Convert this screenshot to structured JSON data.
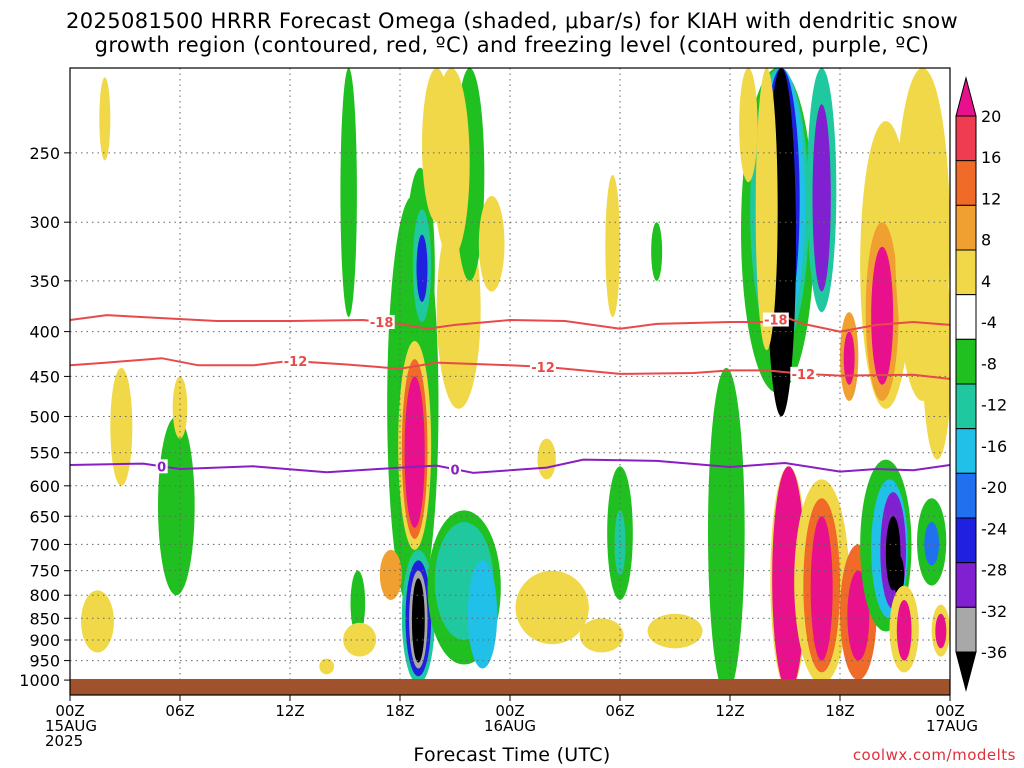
{
  "title": {
    "line1": "2025081500 HRRR Forecast Omega (shaded, μbar/s) for KIAH with dendritic snow",
    "line2": "growth region (contoured, red, ºC) and freezing level (contoured, purple, ºC)"
  },
  "xlabel": "Forecast Time (UTC)",
  "credit": "coolwx.com/modelts",
  "colors": {
    "dgz_contour": "#e84a4a",
    "freezing_contour": "#8a1ec4",
    "ground": "#a0522d"
  },
  "chart_data": {
    "type": "heatmap",
    "title": "2025081500 HRRR Forecast Omega (shaded, μbar/s) for KIAH with dendritic snow growth region (contoured, red, ºC) and freezing level (contoured, purple, ºC)",
    "xlabel": "Forecast Time (UTC)",
    "ylabel": "",
    "x_range_hours": [
      0,
      48
    ],
    "y_axis": "pressure (hPa), log scale, inverted",
    "ylim": [
      1040,
      200
    ],
    "grid": true,
    "x_ticks": [
      {
        "hour": 0,
        "lines": [
          "00Z",
          "15AUG",
          "2025"
        ]
      },
      {
        "hour": 6,
        "lines": [
          "06Z"
        ]
      },
      {
        "hour": 12,
        "lines": [
          "12Z"
        ]
      },
      {
        "hour": 18,
        "lines": [
          "18Z"
        ]
      },
      {
        "hour": 24,
        "lines": [
          "00Z",
          "16AUG"
        ]
      },
      {
        "hour": 30,
        "lines": [
          "06Z"
        ]
      },
      {
        "hour": 36,
        "lines": [
          "12Z"
        ]
      },
      {
        "hour": 42,
        "lines": [
          "18Z"
        ]
      },
      {
        "hour": 48,
        "lines": [
          "00Z",
          "17AUG"
        ]
      }
    ],
    "y_ticks": [
      250,
      300,
      350,
      400,
      450,
      500,
      550,
      600,
      650,
      700,
      750,
      800,
      850,
      900,
      950,
      1000
    ],
    "colorbar": {
      "levels": [
        "20",
        "16",
        "12",
        "8",
        "4",
        "-4",
        "-8",
        "-12",
        "-16",
        "-20",
        "-24",
        "-28",
        "-32",
        "-36"
      ],
      "bands": [
        {
          "lo": 16,
          "hi": 20,
          "color": "#f03c50"
        },
        {
          "lo": 12,
          "hi": 16,
          "color": "#f06a28"
        },
        {
          "lo": 8,
          "hi": 12,
          "color": "#f0a030"
        },
        {
          "lo": 4,
          "hi": 8,
          "color": "#f0d848"
        },
        {
          "lo": -4,
          "hi": 4,
          "color": "#ffffff"
        },
        {
          "lo": -8,
          "hi": -4,
          "color": "#20c020"
        },
        {
          "lo": -12,
          "hi": -8,
          "color": "#20c8a0"
        },
        {
          "lo": -16,
          "hi": -12,
          "color": "#20c0e8"
        },
        {
          "lo": -20,
          "hi": -16,
          "color": "#2070f0"
        },
        {
          "lo": -24,
          "hi": -20,
          "color": "#2020e0"
        },
        {
          "lo": -28,
          "hi": -24,
          "color": "#8020d0"
        },
        {
          "lo": -32,
          "hi": -28,
          "color": "#a8a8a8"
        }
      ],
      "top_extend_color": "#e8108c",
      "bottom_extend_color": "#000000"
    },
    "series": [
      {
        "name": "-18",
        "color": "#e84a4a",
        "points": [
          [
            0,
            388
          ],
          [
            2,
            383
          ],
          [
            4,
            385
          ],
          [
            8,
            389
          ],
          [
            12,
            389
          ],
          [
            16,
            388
          ],
          [
            18,
            392
          ],
          [
            19.5,
            397
          ],
          [
            21,
            393
          ],
          [
            24,
            388
          ],
          [
            27,
            389
          ],
          [
            30,
            397
          ],
          [
            32,
            392
          ],
          [
            36,
            390
          ],
          [
            38,
            390
          ],
          [
            39,
            385
          ],
          [
            40,
            392
          ],
          [
            42,
            400
          ],
          [
            44,
            393
          ],
          [
            46,
            390
          ],
          [
            48,
            393
          ]
        ],
        "labels": [
          {
            "hour": 17,
            "text": "-18"
          },
          {
            "hour": 38.5,
            "text": "-18"
          }
        ]
      },
      {
        "name": "-12",
        "color": "#e84a4a",
        "points": [
          [
            0,
            437
          ],
          [
            2,
            434
          ],
          [
            5,
            429
          ],
          [
            7,
            437
          ],
          [
            10,
            437
          ],
          [
            12,
            432
          ],
          [
            15,
            436
          ],
          [
            18,
            441
          ],
          [
            20,
            434
          ],
          [
            24,
            437
          ],
          [
            26,
            439
          ],
          [
            30,
            447
          ],
          [
            34,
            446
          ],
          [
            36,
            443
          ],
          [
            38,
            443
          ],
          [
            40,
            447
          ],
          [
            42,
            449
          ],
          [
            46,
            448
          ],
          [
            48,
            453
          ]
        ],
        "labels": [
          {
            "hour": 12.3,
            "text": "-12"
          },
          {
            "hour": 25.8,
            "text": "-12"
          },
          {
            "hour": 40,
            "text": "-12"
          }
        ]
      },
      {
        "name": "0",
        "color": "#8a1ec4",
        "points": [
          [
            0,
            568
          ],
          [
            4,
            566
          ],
          [
            6,
            574
          ],
          [
            10,
            570
          ],
          [
            14,
            579
          ],
          [
            18,
            572
          ],
          [
            20,
            569
          ],
          [
            22,
            580
          ],
          [
            26,
            572
          ],
          [
            28,
            560
          ],
          [
            32,
            562
          ],
          [
            36,
            571
          ],
          [
            39,
            565
          ],
          [
            42,
            578
          ],
          [
            44,
            574
          ],
          [
            46,
            576
          ],
          [
            48,
            568
          ]
        ],
        "labels": [
          {
            "hour": 5,
            "text": "0"
          },
          {
            "hour": 21,
            "text": "0"
          }
        ]
      }
    ],
    "omega_regions": [
      {
        "t": 1.5,
        "p": 860,
        "rt": 0.9,
        "rp": 70,
        "val": 6
      },
      {
        "t": 2.8,
        "p": 520,
        "rt": 0.6,
        "rp": 80,
        "val": 6
      },
      {
        "t": 1.9,
        "p": 230,
        "rt": 0.3,
        "rp": 25,
        "val": 6
      },
      {
        "t": 5.8,
        "p": 650,
        "rt": 1.0,
        "rp": 150,
        "val": -6
      },
      {
        "t": 6.0,
        "p": 490,
        "rt": 0.4,
        "rp": 40,
        "val": 6
      },
      {
        "t": 15.2,
        "p": 290,
        "rt": 0.45,
        "rp": 95,
        "val": -6
      },
      {
        "t": 15.7,
        "p": 820,
        "rt": 0.4,
        "rp": 70,
        "val": -6
      },
      {
        "t": 15.8,
        "p": 900,
        "rt": 0.9,
        "rp": 40,
        "val": 6
      },
      {
        "t": 14.0,
        "p": 965,
        "rt": 0.4,
        "rp": 20,
        "val": 6
      },
      {
        "t": 18.7,
        "p": 560,
        "rt": 1.4,
        "rp": 280,
        "val": -6
      },
      {
        "t": 19.1,
        "p": 350,
        "rt": 0.8,
        "rp": 90,
        "val": -6
      },
      {
        "t": 19.2,
        "p": 340,
        "rt": 0.5,
        "rp": 50,
        "val": -10
      },
      {
        "t": 19.2,
        "p": 340,
        "rt": 0.3,
        "rp": 30,
        "val": -22
      },
      {
        "t": 17.5,
        "p": 760,
        "rt": 0.6,
        "rp": 50,
        "val": 10
      },
      {
        "t": 18.8,
        "p": 560,
        "rt": 0.9,
        "rp": 150,
        "val": 6
      },
      {
        "t": 18.8,
        "p": 560,
        "rt": 0.7,
        "rp": 130,
        "val": 14
      },
      {
        "t": 18.8,
        "p": 560,
        "rt": 0.55,
        "rp": 110,
        "val": 22
      },
      {
        "t": 19.0,
        "p": 860,
        "rt": 0.9,
        "rp": 150,
        "val": -10
      },
      {
        "t": 19.0,
        "p": 860,
        "rt": 0.7,
        "rp": 130,
        "val": -22
      },
      {
        "t": 19.0,
        "p": 860,
        "rt": 0.5,
        "rp": 110,
        "val": -30
      },
      {
        "t": 19.0,
        "p": 860,
        "rt": 0.35,
        "rp": 95,
        "val": -40
      },
      {
        "t": 21.5,
        "p": 800,
        "rt": 2.0,
        "rp": 160,
        "val": -6
      },
      {
        "t": 21.5,
        "p": 780,
        "rt": 1.6,
        "rp": 120,
        "val": -10
      },
      {
        "t": 22.5,
        "p": 850,
        "rt": 0.8,
        "rp": 120,
        "val": -14
      },
      {
        "t": 21.2,
        "p": 390,
        "rt": 1.2,
        "rp": 100,
        "val": 6
      },
      {
        "t": 21.8,
        "p": 270,
        "rt": 0.8,
        "rp": 80,
        "val": -6
      },
      {
        "t": 20.8,
        "p": 250,
        "rt": 1.0,
        "rp": 80,
        "val": 6
      },
      {
        "t": 23.0,
        "p": 320,
        "rt": 0.7,
        "rp": 40,
        "val": 6
      },
      {
        "t": 26.3,
        "p": 830,
        "rt": 2.0,
        "rp": 80,
        "val": 6
      },
      {
        "t": 29.0,
        "p": 890,
        "rt": 1.2,
        "rp": 40,
        "val": 6
      },
      {
        "t": 33.0,
        "p": 880,
        "rt": 1.5,
        "rp": 40,
        "val": 6
      },
      {
        "t": 30.0,
        "p": 690,
        "rt": 0.7,
        "rp": 120,
        "val": -6
      },
      {
        "t": 30.0,
        "p": 700,
        "rt": 0.3,
        "rp": 60,
        "val": -10
      },
      {
        "t": 29.6,
        "p": 325,
        "rt": 0.4,
        "rp": 60,
        "val": 6
      },
      {
        "t": 32.0,
        "p": 325,
        "rt": 0.3,
        "rp": 25,
        "val": -6
      },
      {
        "t": 26.0,
        "p": 560,
        "rt": 0.5,
        "rp": 30,
        "val": 6
      },
      {
        "t": 35.8,
        "p": 740,
        "rt": 1.0,
        "rp": 300,
        "val": -6
      },
      {
        "t": 38.6,
        "p": 300,
        "rt": 2.0,
        "rp": 170,
        "val": -6
      },
      {
        "t": 38.7,
        "p": 280,
        "rt": 1.6,
        "rp": 140,
        "val": -10
      },
      {
        "t": 38.8,
        "p": 280,
        "rt": 1.3,
        "rp": 125,
        "val": -16
      },
      {
        "t": 38.8,
        "p": 290,
        "rt": 1.0,
        "rp": 110,
        "val": -22
      },
      {
        "t": 38.8,
        "p": 300,
        "rt": 0.8,
        "rp": 200,
        "val": -40
      },
      {
        "t": 41.0,
        "p": 280,
        "rt": 0.8,
        "rp": 100,
        "val": -12
      },
      {
        "t": 41.0,
        "p": 290,
        "rt": 0.5,
        "rp": 70,
        "val": -26
      },
      {
        "t": 44.5,
        "p": 360,
        "rt": 1.4,
        "rp": 130,
        "val": 6
      },
      {
        "t": 44.3,
        "p": 390,
        "rt": 0.9,
        "rp": 90,
        "val": 10
      },
      {
        "t": 44.3,
        "p": 390,
        "rt": 0.6,
        "rp": 70,
        "val": 22
      },
      {
        "t": 46.5,
        "p": 330,
        "rt": 1.5,
        "rp": 150,
        "val": 6
      },
      {
        "t": 47.3,
        "p": 440,
        "rt": 0.8,
        "rp": 120,
        "val": 6
      },
      {
        "t": 38.0,
        "p": 300,
        "rt": 0.6,
        "rp": 120,
        "val": 6
      },
      {
        "t": 37.0,
        "p": 230,
        "rt": 0.5,
        "rp": 40,
        "val": 6
      },
      {
        "t": 42.5,
        "p": 430,
        "rt": 0.5,
        "rp": 50,
        "val": 10
      },
      {
        "t": 42.5,
        "p": 430,
        "rt": 0.3,
        "rp": 30,
        "val": 22
      },
      {
        "t": 39.2,
        "p": 800,
        "rt": 1.0,
        "rp": 230,
        "val": 6
      },
      {
        "t": 39.2,
        "p": 800,
        "rt": 0.9,
        "rp": 230,
        "val": 22
      },
      {
        "t": 41.0,
        "p": 800,
        "rt": 1.5,
        "rp": 210,
        "val": 6
      },
      {
        "t": 41.0,
        "p": 800,
        "rt": 1.0,
        "rp": 180,
        "val": 14
      },
      {
        "t": 41.0,
        "p": 800,
        "rt": 0.6,
        "rp": 150,
        "val": 22
      },
      {
        "t": 43.0,
        "p": 850,
        "rt": 1.0,
        "rp": 150,
        "val": 14
      },
      {
        "t": 43.0,
        "p": 850,
        "rt": 0.6,
        "rp": 100,
        "val": 22
      },
      {
        "t": 44.5,
        "p": 720,
        "rt": 1.4,
        "rp": 160,
        "val": -6
      },
      {
        "t": 44.7,
        "p": 720,
        "rt": 1.0,
        "rp": 130,
        "val": -16
      },
      {
        "t": 44.9,
        "p": 720,
        "rt": 0.7,
        "rp": 110,
        "val": -26
      },
      {
        "t": 44.9,
        "p": 720,
        "rt": 0.4,
        "rp": 70,
        "val": -36
      },
      {
        "t": 45.2,
        "p": 760,
        "rt": 0.3,
        "rp": 40,
        "val": -42
      },
      {
        "t": 45.5,
        "p": 880,
        "rt": 0.8,
        "rp": 100,
        "val": 6
      },
      {
        "t": 45.5,
        "p": 880,
        "rt": 0.4,
        "rp": 70,
        "val": 22
      },
      {
        "t": 47.0,
        "p": 700,
        "rt": 0.8,
        "rp": 80,
        "val": -8
      },
      {
        "t": 47.0,
        "p": 700,
        "rt": 0.4,
        "rp": 40,
        "val": -18
      },
      {
        "t": 47.5,
        "p": 880,
        "rt": 0.5,
        "rp": 60,
        "val": 6
      },
      {
        "t": 47.5,
        "p": 880,
        "rt": 0.3,
        "rp": 40,
        "val": 22
      },
      {
        "t": 20.0,
        "p": 220,
        "rt": 0.8,
        "rp": 80,
        "val": 6
      }
    ]
  }
}
